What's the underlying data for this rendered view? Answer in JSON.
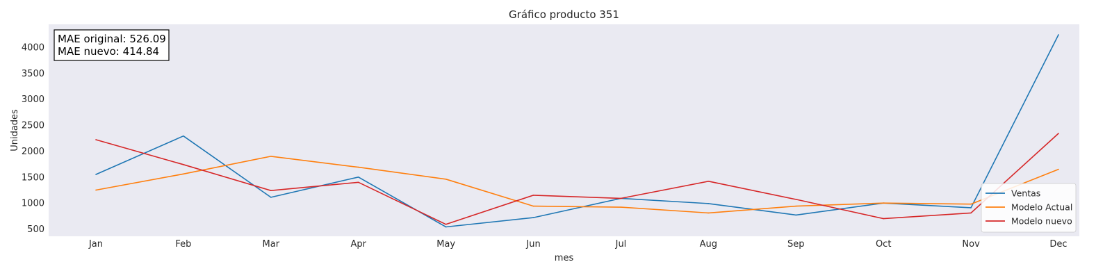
{
  "chart_data": {
    "type": "line",
    "title": "Gráfico producto 351",
    "xlabel": "mes",
    "ylabel": "Unidades",
    "categories": [
      "Jan",
      "Feb",
      "Mar",
      "Apr",
      "May",
      "Jun",
      "Jul",
      "Aug",
      "Sep",
      "Oct",
      "Nov",
      "Dec"
    ],
    "ylim": [
      360,
      4440
    ],
    "yticks": [
      500,
      1000,
      1500,
      2000,
      2500,
      3000,
      3500,
      4000
    ],
    "grid": false,
    "legend_position": "lower-right",
    "series": [
      {
        "name": "Ventas",
        "color": "#1f77b4",
        "values": [
          1550,
          2290,
          1110,
          1500,
          540,
          720,
          1090,
          990,
          770,
          1000,
          910,
          4240
        ]
      },
      {
        "name": "Modelo Actual",
        "color": "#ff7f0e",
        "values": [
          1250,
          1560,
          1900,
          1690,
          1460,
          940,
          920,
          810,
          940,
          1000,
          980,
          1650
        ]
      },
      {
        "name": "Modelo nuevo",
        "color": "#d62728",
        "values": [
          2220,
          1740,
          1240,
          1400,
          590,
          1150,
          1090,
          1420,
          1070,
          700,
          810,
          2340
        ]
      }
    ],
    "annotation": {
      "line1": "MAE original: 526.09",
      "line2": "MAE nuevo: 414.84"
    }
  }
}
